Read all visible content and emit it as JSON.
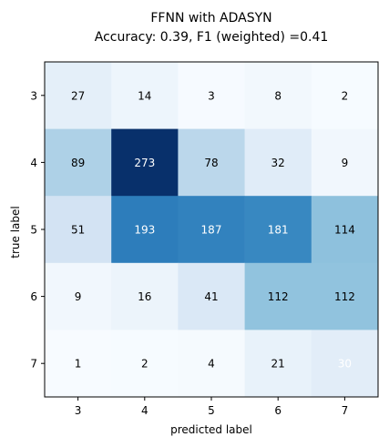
{
  "chart_data": {
    "type": "heatmap",
    "title_line1": "FFNN with ADASYN",
    "title_line2": "Accuracy: 0.39, F1 (weighted) =0.41",
    "xlabel": "predicted label",
    "ylabel": "true label",
    "x_categories": [
      "3",
      "4",
      "5",
      "6",
      "7"
    ],
    "y_categories": [
      "3",
      "4",
      "5",
      "6",
      "7"
    ],
    "values": [
      [
        27,
        14,
        3,
        8,
        2
      ],
      [
        89,
        273,
        78,
        32,
        9
      ],
      [
        51,
        193,
        187,
        181,
        114
      ],
      [
        9,
        16,
        41,
        112,
        112
      ],
      [
        1,
        2,
        4,
        21,
        30
      ]
    ],
    "colormap": "Blues",
    "colormap_stops": [
      "#f7fbff",
      "#deebf7",
      "#c6dbef",
      "#9ecae1",
      "#6baed6",
      "#4292c6",
      "#2171b5",
      "#08519c",
      "#08306b"
    ],
    "text_color_dark": "#000000",
    "text_color_light": "#ffffff",
    "grid": false,
    "legend": "none"
  }
}
